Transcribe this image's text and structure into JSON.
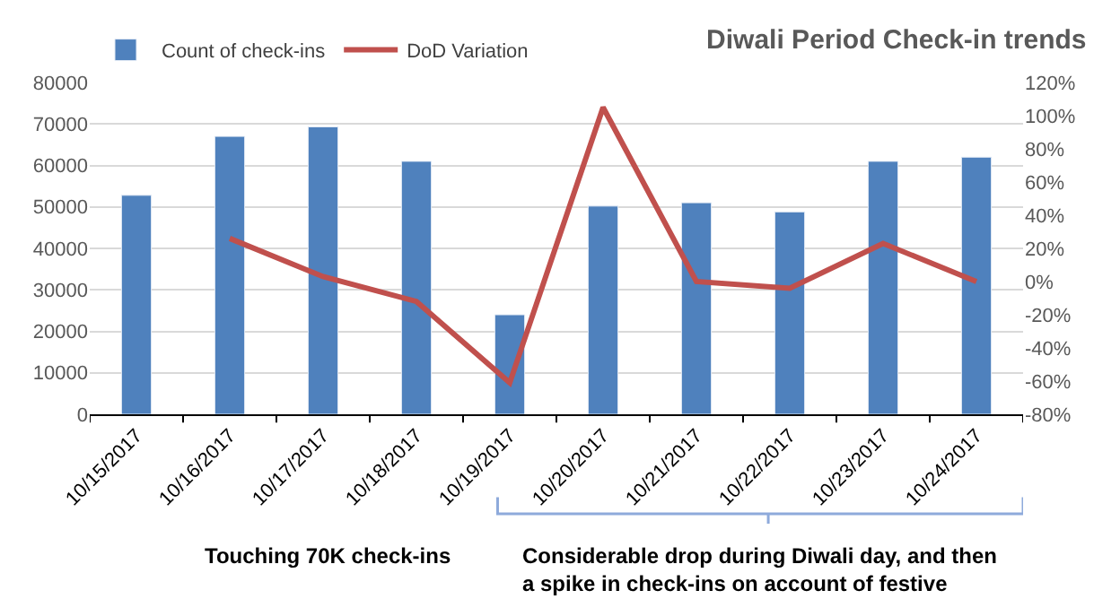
{
  "chart_data": {
    "type": "bar",
    "title": "Diwali Period Check-in trends",
    "categories": [
      "10/15/2017",
      "10/16/2017",
      "10/17/2017",
      "10/18/2017",
      "10/19/2017",
      "10/20/2017",
      "10/21/2017",
      "10/22/2017",
      "10/23/2017",
      "10/24/2017"
    ],
    "series": [
      {
        "name": "Count of check-ins",
        "color": "#4f81bd",
        "values": [
          52800,
          67000,
          69300,
          61000,
          24000,
          50200,
          51000,
          48800,
          61000,
          62000
        ]
      },
      {
        "name": "DoD Variation",
        "type": "line",
        "axis": "y2",
        "color": "#c0504d",
        "values": [
          null,
          26,
          3,
          -12,
          -61,
          105,
          0,
          -4,
          23,
          0
        ]
      }
    ],
    "ylim": [
      0,
      80000
    ],
    "yticks": [
      0,
      10000,
      20000,
      30000,
      40000,
      50000,
      60000,
      70000,
      80000
    ],
    "y2lim": [
      -80,
      120
    ],
    "y2ticks": [
      {
        "value": -80,
        "label": "-80%"
      },
      {
        "value": -60,
        "label": "-60%"
      },
      {
        "value": -40,
        "label": "-40%"
      },
      {
        "value": -20,
        "label": "-20%"
      },
      {
        "value": 0,
        "label": "0%"
      },
      {
        "value": 20,
        "label": "20%"
      },
      {
        "value": 40,
        "label": "40%"
      },
      {
        "value": 60,
        "label": "60%"
      },
      {
        "value": 80,
        "label": "80%"
      },
      {
        "value": 100,
        "label": "100%"
      },
      {
        "value": 120,
        "label": "120%"
      }
    ],
    "grid": "y",
    "legend": "top left",
    "annotations": [
      "Touching 70K check-ins",
      "Considerable drop during Diwali day, and then\na spike in check-ins on account of festive"
    ]
  }
}
